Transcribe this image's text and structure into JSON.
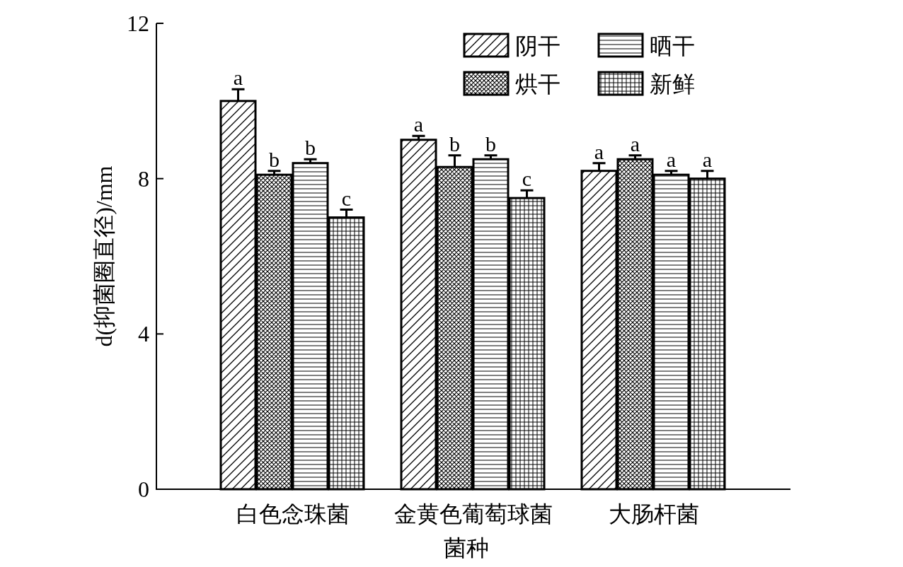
{
  "chart_data": {
    "type": "bar",
    "xlabel": "菌种",
    "ylabel": "d(抑菌圈直径)/mm",
    "categories": [
      "白色念珠菌",
      "金黄色葡萄球菌",
      "大肠杆菌"
    ],
    "ylim": [
      0,
      12
    ],
    "yticks": [
      0,
      4,
      8,
      12
    ],
    "legend": "top right",
    "grid": false,
    "series": [
      {
        "name": "阴干",
        "color": "#000000",
        "values": [
          10.0,
          9.0,
          8.2
        ],
        "errors": [
          0.3,
          0.1,
          0.2
        ],
        "value_labels": [
          "a",
          "a",
          "a"
        ]
      },
      {
        "name": "烘干",
        "color": "#000000",
        "values": [
          8.1,
          8.3,
          8.5
        ],
        "errors": [
          0.1,
          0.3,
          0.1
        ],
        "value_labels": [
          "b",
          "b",
          "a"
        ]
      },
      {
        "name": "晒干",
        "color": "#000000",
        "values": [
          8.4,
          8.5,
          8.1
        ],
        "errors": [
          0.1,
          0.1,
          0.1
        ],
        "value_labels": [
          "b",
          "b",
          "a"
        ]
      },
      {
        "name": "新鲜",
        "color": "#000000",
        "values": [
          7.0,
          7.5,
          8.0
        ],
        "errors": [
          0.2,
          0.2,
          0.2
        ],
        "value_labels": [
          "c",
          "c",
          "a"
        ]
      }
    ]
  }
}
